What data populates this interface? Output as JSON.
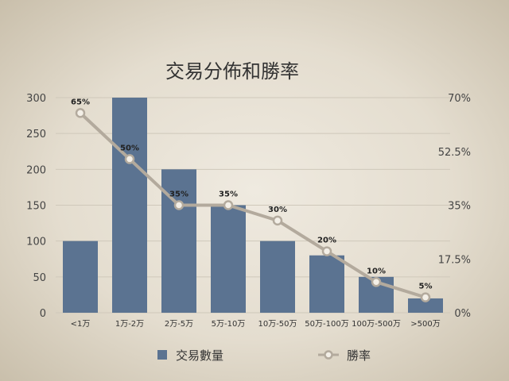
{
  "chart_data": {
    "type": "bar",
    "title": "交易分佈和勝率",
    "categories": [
      "<1万",
      "1万-2万",
      "2万-5万",
      "5万-10万",
      "10万-50万",
      "50万-100万",
      "100万-500万",
      ">500万"
    ],
    "series": [
      {
        "name": "交易數量",
        "type": "bar",
        "axis": "left",
        "color": "#5b7391",
        "values": [
          100,
          300,
          200,
          150,
          100,
          80,
          50,
          20
        ]
      },
      {
        "name": "勝率",
        "type": "line",
        "axis": "right",
        "color": "#b3aa9d",
        "values": [
          65,
          50,
          35,
          35,
          30,
          20,
          10,
          5
        ],
        "labels": [
          "65%",
          "50%",
          "35%",
          "35%",
          "30%",
          "20%",
          "10%",
          "5%"
        ]
      }
    ],
    "y_left": {
      "ylim": [
        0,
        300
      ],
      "ticks": [
        "0",
        "50",
        "100",
        "150",
        "200",
        "250",
        "300"
      ]
    },
    "y_right": {
      "ylim": [
        0,
        70
      ],
      "ticks": [
        "0%",
        "17.5%",
        "35%",
        "52.5%",
        "70%"
      ]
    },
    "grid": true,
    "legend_position": "bottom"
  }
}
